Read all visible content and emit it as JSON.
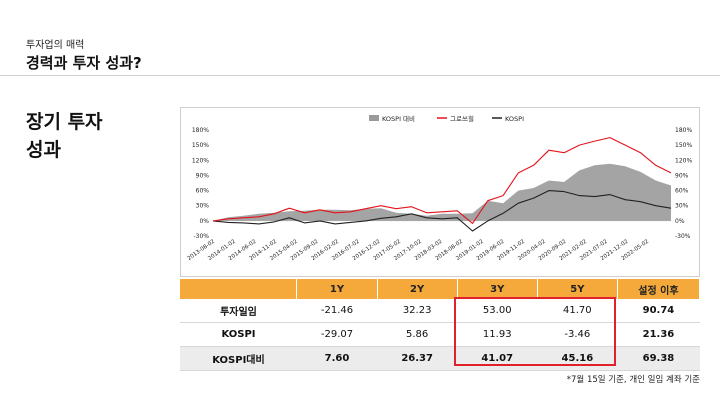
{
  "header": {
    "subtitle": "투자업의 매력",
    "title": "경력과 투자 성과?"
  },
  "section_title": "장기 투자\n성과",
  "chart_data": {
    "type": "area",
    "legend": [
      "KOSPI 대비",
      "그로쓰힐",
      "KOSPI"
    ],
    "legend_position": "top-center",
    "colors": {
      "excess": "#9a9a9a",
      "fund": "#e3131b",
      "kospi": "#222222"
    },
    "y_ticks_left": [
      "180%",
      "150%",
      "120%",
      "90%",
      "60%",
      "30%",
      "0%",
      "-30%"
    ],
    "y_ticks_right": [
      "180%",
      "150%",
      "120%",
      "90%",
      "60%",
      "30%",
      "0%",
      "-30%"
    ],
    "ylim": [
      -30,
      180
    ],
    "x_ticks": [
      "2013-08-02",
      "2014-01-02",
      "2014-06-02",
      "2014-11-02",
      "2015-04-02",
      "2015-09-02",
      "2016-02-02",
      "2016-07-02",
      "2016-12-02",
      "2017-05-02",
      "2017-10-02",
      "2018-03-02",
      "2018-08-02",
      "2019-01-02",
      "2019-06-02",
      "2019-11-02",
      "2020-04-02",
      "2020-09-02",
      "2021-02-02",
      "2021-07-02",
      "2021-12-02",
      "2022-05-02"
    ],
    "series": [
      {
        "name": "그로쓰힐",
        "values": [
          0,
          4,
          6,
          8,
          14,
          25,
          16,
          22,
          16,
          18,
          24,
          30,
          24,
          28,
          16,
          18,
          20,
          -5,
          40,
          50,
          95,
          110,
          140,
          135,
          150,
          158,
          165,
          150,
          135,
          110,
          95
        ]
      },
      {
        "name": "KOSPI",
        "values": [
          0,
          -3,
          -4,
          -6,
          -2,
          6,
          -4,
          0,
          -6,
          -3,
          0,
          5,
          8,
          14,
          6,
          4,
          6,
          -20,
          0,
          15,
          35,
          45,
          60,
          58,
          50,
          48,
          52,
          42,
          38,
          30,
          25
        ]
      },
      {
        "name": "KOSPI 대비",
        "values": [
          0,
          7,
          10,
          14,
          16,
          19,
          20,
          22,
          22,
          21,
          24,
          25,
          16,
          14,
          10,
          14,
          14,
          15,
          40,
          35,
          60,
          65,
          80,
          77,
          100,
          110,
          113,
          108,
          97,
          80,
          70
        ]
      }
    ]
  },
  "table": {
    "headers": [
      "",
      "1Y",
      "2Y",
      "3Y",
      "5Y",
      "설정 이후"
    ],
    "rows": [
      [
        "투자일임",
        "-21.46",
        "32.23",
        "53.00",
        "41.70",
        "90.74"
      ],
      [
        "KOSPI",
        "-29.07",
        "5.86",
        "11.93",
        "-3.46",
        "21.36"
      ],
      [
        "KOSPI대비",
        "7.60",
        "26.37",
        "41.07",
        "45.16",
        "69.38"
      ]
    ]
  },
  "footnote": "*7월 15일 기준, 개인 일임 계좌 기준"
}
